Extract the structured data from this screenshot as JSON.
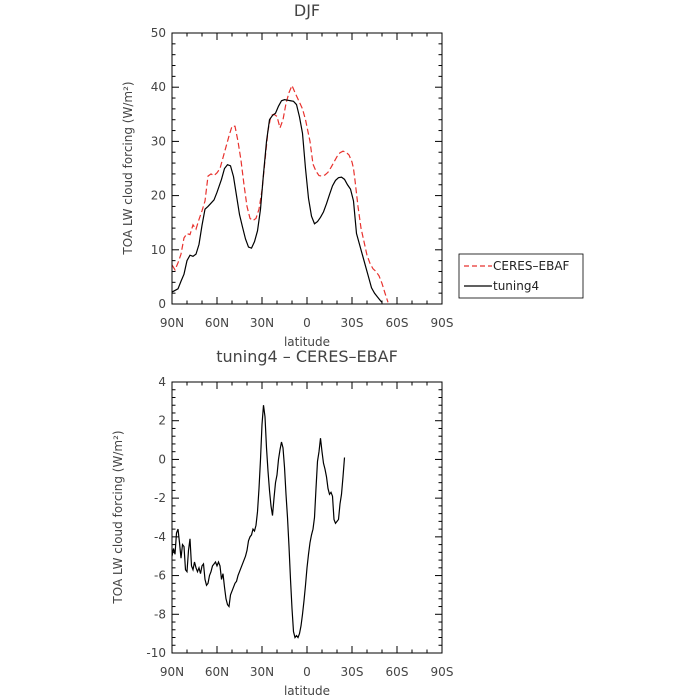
{
  "chart_data": [
    {
      "type": "line",
      "title": "DJF",
      "xlabel": "latitude",
      "ylabel": "TOA LW cloud forcing (W/m²)",
      "x_tick_labels": [
        "90N",
        "60N",
        "30N",
        "0",
        "30S",
        "60S",
        "90S"
      ],
      "x_tick_values": [
        90,
        60,
        30,
        0,
        -30,
        -60,
        -90
      ],
      "xlim": [
        90,
        -90
      ],
      "ylim": [
        0,
        50
      ],
      "y_ticks": [
        0,
        10,
        20,
        30,
        40,
        50
      ],
      "grid": false,
      "legend_position": "right, outside plot",
      "series": [
        {
          "name": "CERES–EBAF",
          "color": "#e8322e",
          "dash": "dashed",
          "points": [
            [
              90,
              7.2
            ],
            [
              88,
              6.3
            ],
            [
              86,
              7.6
            ],
            [
              84,
              9.2
            ],
            [
              82,
              12.2
            ],
            [
              80,
              13.0
            ],
            [
              78,
              12.8
            ],
            [
              76,
              14.6
            ],
            [
              74,
              13.8
            ],
            [
              72,
              15.6
            ],
            [
              70,
              17.2
            ],
            [
              68,
              19.0
            ],
            [
              66,
              23.6
            ],
            [
              64,
              24.0
            ],
            [
              62,
              23.7
            ],
            [
              60,
              24.2
            ],
            [
              58,
              25.0
            ],
            [
              55,
              28.0
            ],
            [
              52,
              31.0
            ],
            [
              50,
              32.8
            ],
            [
              48,
              32.8
            ],
            [
              46,
              30.0
            ],
            [
              44,
              26.5
            ],
            [
              42,
              22.0
            ],
            [
              40,
              18.0
            ],
            [
              38,
              15.8
            ],
            [
              36,
              15.4
            ],
            [
              34,
              15.8
            ],
            [
              32,
              17.5
            ],
            [
              30,
              21.0
            ],
            [
              28,
              26.5
            ],
            [
              26,
              32.0
            ],
            [
              24,
              34.8
            ],
            [
              22,
              35.0
            ],
            [
              20,
              34.6
            ],
            [
              18,
              32.5
            ],
            [
              16,
              34.0
            ],
            [
              14,
              37.0
            ],
            [
              12,
              39.0
            ],
            [
              10,
              40.3
            ],
            [
              8,
              39.0
            ],
            [
              6,
              37.8
            ],
            [
              5,
              37.2
            ],
            [
              3,
              36.0
            ],
            [
              1,
              34.0
            ],
            [
              -2,
              30.0
            ],
            [
              -4,
              25.8
            ],
            [
              -6,
              24.5
            ],
            [
              -8,
              23.7
            ],
            [
              -10,
              23.6
            ],
            [
              -12,
              23.8
            ],
            [
              -14,
              24.3
            ],
            [
              -16,
              25.2
            ],
            [
              -18,
              26.2
            ],
            [
              -20,
              27.2
            ],
            [
              -22,
              27.9
            ],
            [
              -24,
              28.2
            ],
            [
              -26,
              28.0
            ],
            [
              -28,
              27.5
            ],
            [
              -30,
              26.2
            ],
            [
              -31,
              25.0
            ],
            [
              -32,
              22.8
            ],
            [
              -34,
              18.0
            ],
            [
              -36,
              14.0
            ],
            [
              -38,
              11.5
            ],
            [
              -40,
              9.0
            ],
            [
              -42,
              7.5
            ],
            [
              -44,
              6.5
            ],
            [
              -46,
              6.0
            ],
            [
              -48,
              5.2
            ],
            [
              -50,
              3.8
            ],
            [
              -52,
              2.0
            ],
            [
              -54,
              0.3
            ]
          ]
        },
        {
          "name": "tuning4",
          "color": "#000000",
          "dash": "solid",
          "points": [
            [
              90,
              2.2
            ],
            [
              88,
              2.5
            ],
            [
              86,
              2.8
            ],
            [
              84,
              4.2
            ],
            [
              82,
              5.5
            ],
            [
              80,
              8.0
            ],
            [
              78,
              9.0
            ],
            [
              76,
              8.8
            ],
            [
              74,
              9.2
            ],
            [
              72,
              11.0
            ],
            [
              70,
              14.5
            ],
            [
              68,
              17.5
            ],
            [
              66,
              18.0
            ],
            [
              64,
              18.6
            ],
            [
              62,
              19.2
            ],
            [
              60,
              20.6
            ],
            [
              57,
              23.0
            ],
            [
              55,
              25.0
            ],
            [
              53,
              25.7
            ],
            [
              51,
              25.5
            ],
            [
              49,
              23.5
            ],
            [
              47,
              20.0
            ],
            [
              45,
              16.5
            ],
            [
              43,
              14.2
            ],
            [
              41,
              12.0
            ],
            [
              39,
              10.5
            ],
            [
              37,
              10.3
            ],
            [
              35,
              11.5
            ],
            [
              33,
              13.5
            ],
            [
              31,
              17.5
            ],
            [
              29,
              24.0
            ],
            [
              27,
              30.0
            ],
            [
              25,
              34.0
            ],
            [
              23,
              34.8
            ],
            [
              21,
              35.2
            ],
            [
              19,
              36.5
            ],
            [
              17,
              37.5
            ],
            [
              15,
              37.7
            ],
            [
              13,
              37.6
            ],
            [
              11,
              37.5
            ],
            [
              9,
              37.4
            ],
            [
              7,
              36.8
            ],
            [
              5,
              34.5
            ],
            [
              3,
              31.5
            ],
            [
              1,
              25.0
            ],
            [
              -1,
              19.5
            ],
            [
              -3,
              16.2
            ],
            [
              -5,
              14.8
            ],
            [
              -7,
              15.2
            ],
            [
              -9,
              16.0
            ],
            [
              -11,
              17.0
            ],
            [
              -13,
              18.5
            ],
            [
              -15,
              20.2
            ],
            [
              -17,
              21.8
            ],
            [
              -19,
              22.8
            ],
            [
              -21,
              23.3
            ],
            [
              -23,
              23.4
            ],
            [
              -25,
              23.0
            ],
            [
              -27,
              22.0
            ],
            [
              -29,
              21.2
            ],
            [
              -31,
              19.0
            ],
            [
              -33,
              13.0
            ],
            [
              -35,
              11.0
            ],
            [
              -37,
              9.0
            ],
            [
              -39,
              7.0
            ],
            [
              -41,
              5.0
            ],
            [
              -43,
              3.0
            ],
            [
              -45,
              2.0
            ],
            [
              -47,
              1.3
            ],
            [
              -49,
              0.6
            ],
            [
              -50,
              0.3
            ]
          ]
        }
      ]
    },
    {
      "type": "line",
      "title": "tuning4 – CERES–EBAF",
      "xlabel": "latitude",
      "ylabel": "TOA LW cloud forcing (W/m²)",
      "x_tick_labels": [
        "90N",
        "60N",
        "30N",
        "0",
        "30S",
        "60S",
        "90S"
      ],
      "x_tick_values": [
        90,
        60,
        30,
        0,
        -30,
        -60,
        -90
      ],
      "xlim": [
        90,
        -90
      ],
      "ylim": [
        -10,
        4
      ],
      "y_ticks": [
        -10,
        -8,
        -6,
        -4,
        -2,
        0,
        2,
        4
      ],
      "grid": false,
      "series": [
        {
          "color": "#000000",
          "dash": "solid",
          "points": [
            [
              90,
              -5.0
            ],
            [
              89,
              -4.6
            ],
            [
              88,
              -4.9
            ],
            [
              87,
              -3.8
            ],
            [
              86,
              -3.6
            ],
            [
              85,
              -4.3
            ],
            [
              84,
              -5.1
            ],
            [
              83,
              -4.4
            ],
            [
              82,
              -4.5
            ],
            [
              81,
              -5.7
            ],
            [
              80,
              -5.8
            ],
            [
              79,
              -4.7
            ],
            [
              78,
              -4.1
            ],
            [
              77,
              -5.5
            ],
            [
              76,
              -5.7
            ],
            [
              75,
              -5.3
            ],
            [
              74,
              -5.6
            ],
            [
              73,
              -5.8
            ],
            [
              72,
              -5.6
            ],
            [
              71,
              -5.9
            ],
            [
              70,
              -5.5
            ],
            [
              69,
              -5.4
            ],
            [
              68,
              -6.2
            ],
            [
              67,
              -6.5
            ],
            [
              66,
              -6.4
            ],
            [
              65,
              -6.0
            ],
            [
              64,
              -5.8
            ],
            [
              63,
              -5.5
            ],
            [
              62,
              -5.4
            ],
            [
              61,
              -5.3
            ],
            [
              60,
              -5.5
            ],
            [
              59,
              -5.3
            ],
            [
              58,
              -5.5
            ],
            [
              57,
              -6.2
            ],
            [
              56,
              -5.9
            ],
            [
              55,
              -6.6
            ],
            [
              54,
              -7.2
            ],
            [
              53,
              -7.5
            ],
            [
              52,
              -7.6
            ],
            [
              51,
              -7.0
            ],
            [
              50,
              -6.8
            ],
            [
              49,
              -6.6
            ],
            [
              48,
              -6.4
            ],
            [
              47,
              -6.3
            ],
            [
              46,
              -6.0
            ],
            [
              45,
              -5.8
            ],
            [
              44,
              -5.6
            ],
            [
              43,
              -5.4
            ],
            [
              42,
              -5.2
            ],
            [
              41,
              -5.0
            ],
            [
              40,
              -4.7
            ],
            [
              39,
              -4.2
            ],
            [
              38,
              -4.0
            ],
            [
              37,
              -3.9
            ],
            [
              36,
              -3.6
            ],
            [
              35,
              -3.7
            ],
            [
              34,
              -3.4
            ],
            [
              33,
              -2.7
            ],
            [
              32,
              -1.5
            ],
            [
              31,
              0.0
            ],
            [
              30,
              1.8
            ],
            [
              29,
              2.8
            ],
            [
              28,
              2.2
            ],
            [
              27,
              0.6
            ],
            [
              26,
              -0.6
            ],
            [
              25,
              -1.6
            ],
            [
              24,
              -2.4
            ],
            [
              23,
              -2.9
            ],
            [
              22,
              -2.0
            ],
            [
              21,
              -1.2
            ],
            [
              20,
              -0.8
            ],
            [
              19,
              0.0
            ],
            [
              18,
              0.5
            ],
            [
              17,
              0.9
            ],
            [
              16,
              0.6
            ],
            [
              15,
              -0.4
            ],
            [
              14,
              -1.8
            ],
            [
              13,
              -3.0
            ],
            [
              12,
              -4.5
            ],
            [
              11,
              -6.2
            ],
            [
              10,
              -7.7
            ],
            [
              9,
              -8.9
            ],
            [
              8,
              -9.2
            ],
            [
              7,
              -9.1
            ],
            [
              6,
              -9.2
            ],
            [
              5,
              -9.0
            ],
            [
              4,
              -8.6
            ],
            [
              3,
              -8.0
            ],
            [
              2,
              -7.3
            ],
            [
              1,
              -6.5
            ],
            [
              0,
              -5.6
            ],
            [
              -1,
              -4.9
            ],
            [
              -2,
              -4.3
            ],
            [
              -3,
              -3.9
            ],
            [
              -4,
              -3.6
            ],
            [
              -5,
              -3.0
            ],
            [
              -6,
              -1.5
            ],
            [
              -7,
              -0.1
            ],
            [
              -8,
              0.4
            ],
            [
              -9,
              1.1
            ],
            [
              -10,
              0.4
            ],
            [
              -11,
              -0.2
            ],
            [
              -12,
              -0.5
            ],
            [
              -13,
              -0.9
            ],
            [
              -14,
              -1.5
            ],
            [
              -15,
              -1.8
            ],
            [
              -16,
              -1.7
            ],
            [
              -17,
              -1.9
            ],
            [
              -18,
              -3.1
            ],
            [
              -19,
              -3.3
            ],
            [
              -20,
              -3.2
            ],
            [
              -21,
              -3.1
            ],
            [
              -22,
              -2.3
            ],
            [
              -23,
              -1.8
            ],
            [
              -24,
              -0.9
            ],
            [
              -25,
              0.1
            ]
          ]
        }
      ]
    }
  ]
}
